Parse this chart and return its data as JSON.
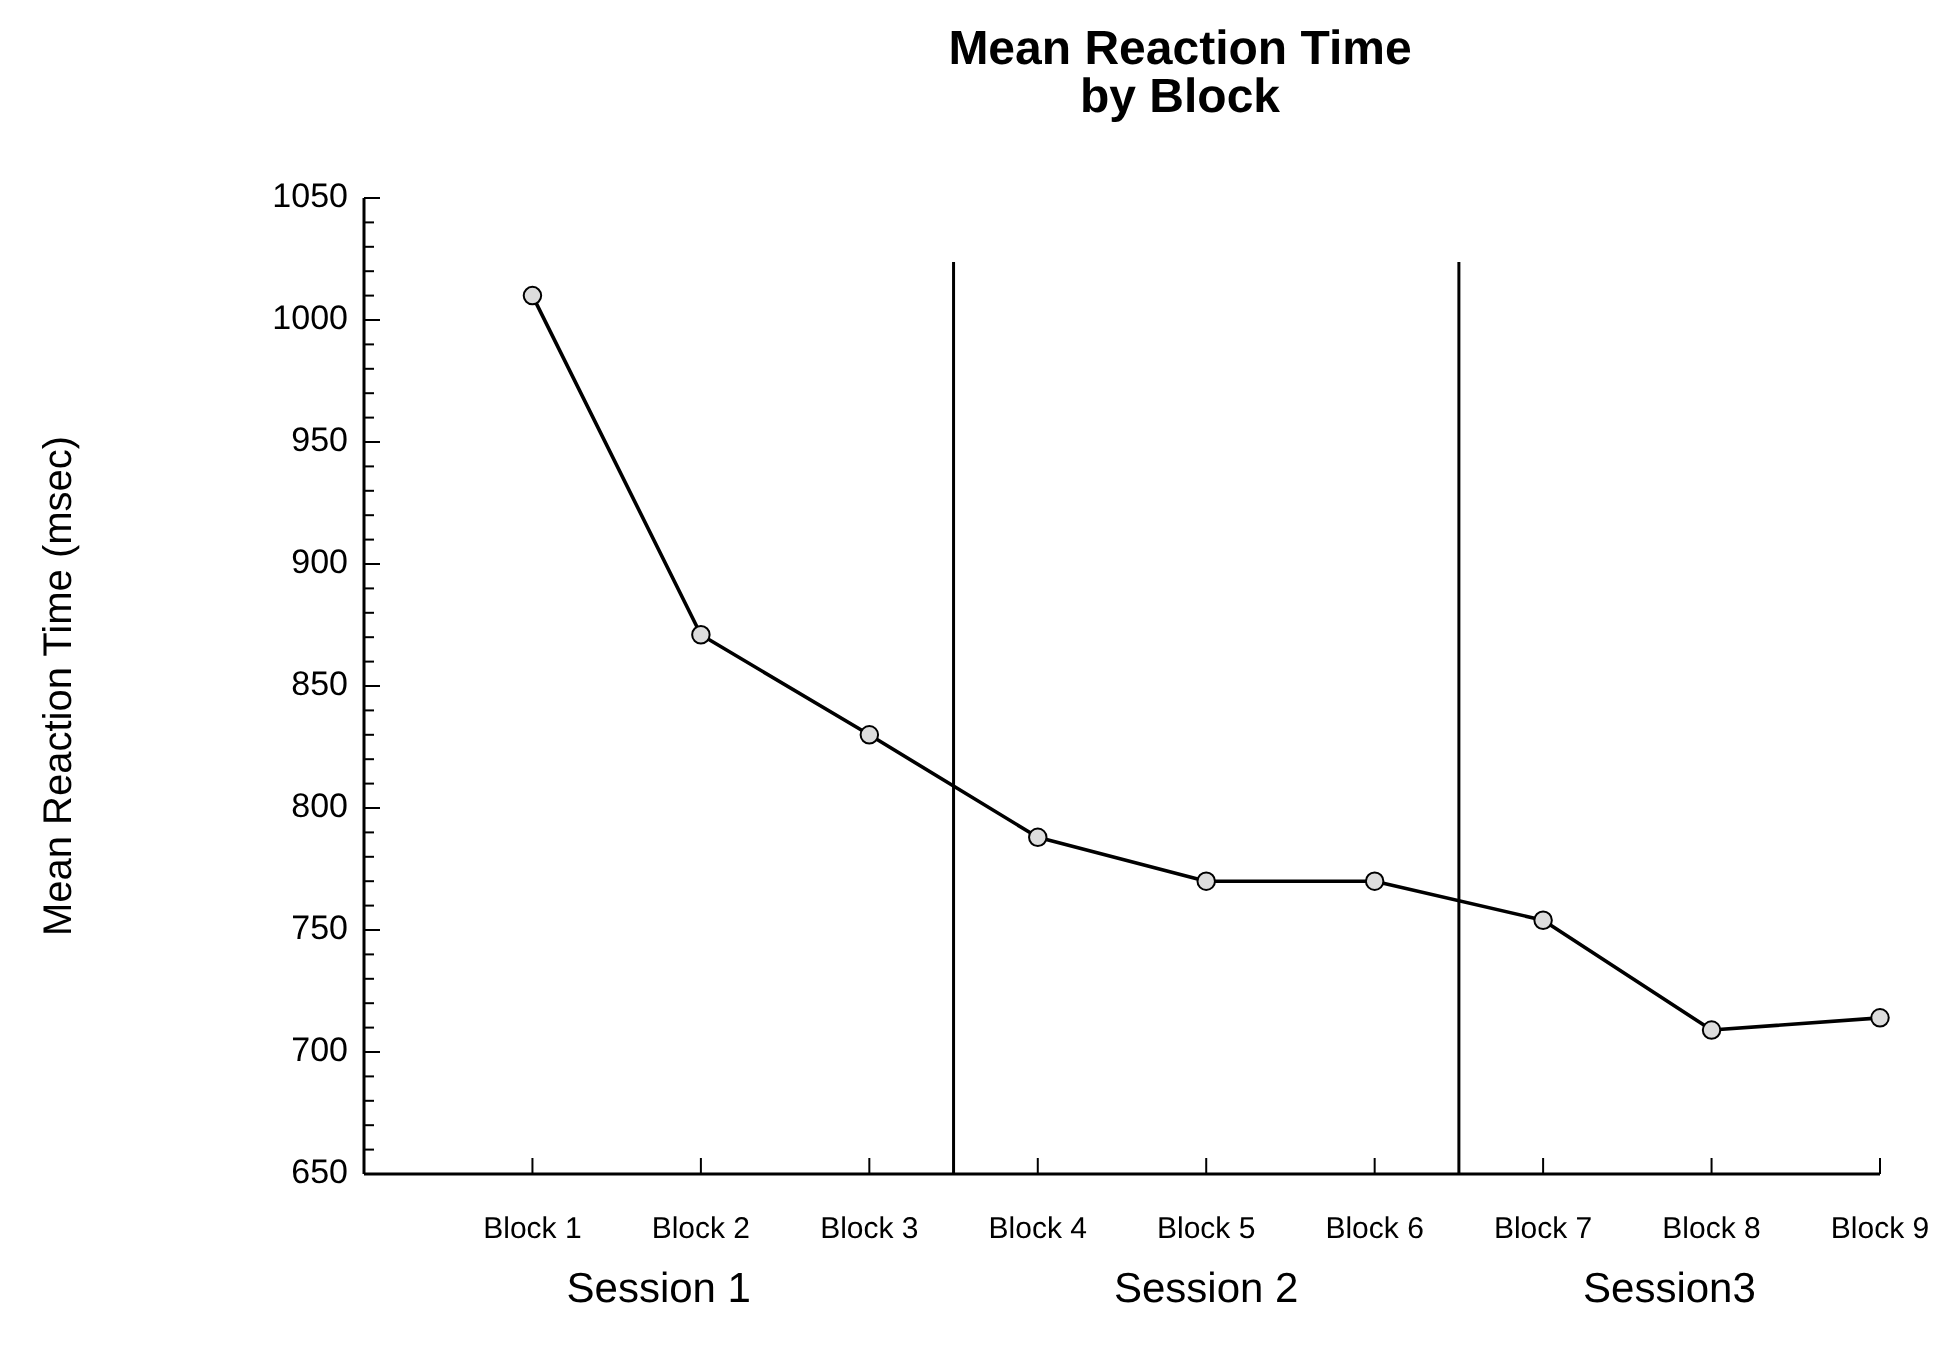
{
  "chart_data": {
    "type": "line",
    "title": "Mean Reaction Time\nby Block",
    "ylabel": "Mean Reaction Time (msec)",
    "categories": [
      "Block 1",
      "Block 2",
      "Block 3",
      "Block 4",
      "Block 5",
      "Block 6",
      "Block 7",
      "Block 8",
      "Block 9"
    ],
    "series": [
      {
        "color": "#000000",
        "values": [
          1010,
          871,
          830,
          788,
          770,
          770,
          754,
          709,
          714
        ]
      }
    ],
    "ylim": [
      650,
      1050
    ],
    "yticks": [
      650,
      {
        "value": 660,
        "label": null
      },
      {
        "value": 670,
        "label": null
      },
      {
        "value": 680,
        "label": null
      },
      {
        "value": 690,
        "label": null
      },
      700,
      {
        "value": 710,
        "label": null
      },
      {
        "value": 720,
        "label": null
      },
      {
        "value": 730,
        "label": null
      },
      {
        "value": 740,
        "label": null
      },
      750,
      {
        "value": 760,
        "label": null
      },
      {
        "value": 770,
        "label": null
      },
      {
        "value": 780,
        "label": null
      },
      {
        "value": 790,
        "label": null
      },
      800,
      {
        "value": 810,
        "label": null
      },
      {
        "value": 820,
        "label": null
      },
      {
        "value": 830,
        "label": null
      },
      {
        "value": 840,
        "label": null
      },
      850,
      {
        "value": 860,
        "label": null
      },
      {
        "value": 870,
        "label": null
      },
      {
        "value": 880,
        "label": null
      },
      {
        "value": 890,
        "label": null
      },
      900,
      {
        "value": 910,
        "label": null
      },
      {
        "value": 920,
        "label": null
      },
      {
        "value": 930,
        "label": null
      },
      {
        "value": 940,
        "label": null
      },
      950,
      {
        "value": 960,
        "label": null
      },
      {
        "value": 970,
        "label": null
      },
      {
        "value": 980,
        "label": null
      },
      {
        "value": 990,
        "label": null
      },
      1000,
      {
        "value": 1010,
        "label": null
      },
      {
        "value": 1020,
        "label": null
      },
      {
        "value": 1030,
        "label": null
      },
      {
        "value": 1040,
        "label": null
      },
      1050
    ],
    "annotations": [
      "Session 1",
      "Session 2",
      "Session3"
    ],
    "marker": "circle",
    "line_style": "solid"
  }
}
